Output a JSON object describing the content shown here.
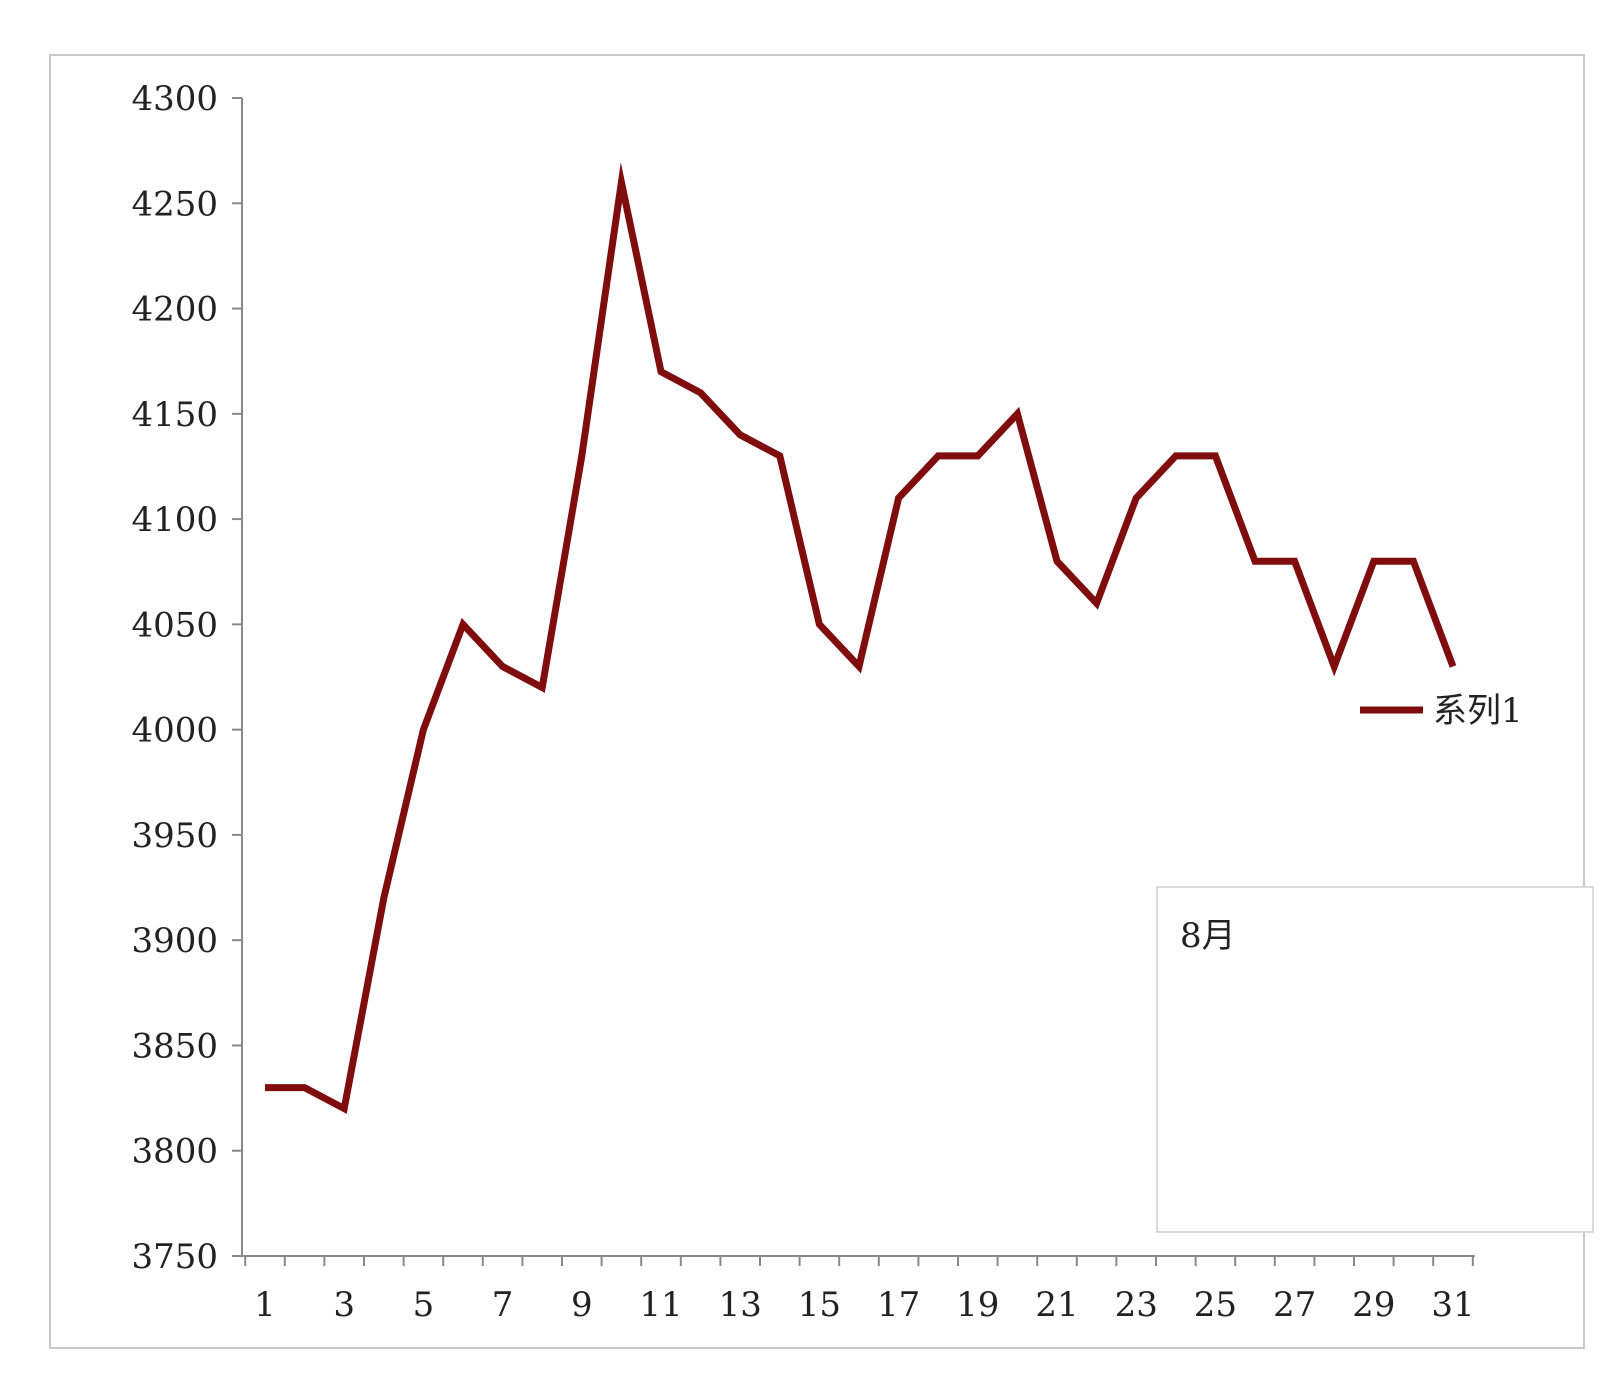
{
  "chart_data": {
    "type": "line",
    "categories": [
      1,
      2,
      3,
      4,
      5,
      6,
      7,
      8,
      9,
      10,
      11,
      12,
      13,
      14,
      15,
      16,
      17,
      18,
      19,
      20,
      21,
      22,
      23,
      24,
      25,
      26,
      27,
      28,
      29,
      30,
      31
    ],
    "x_tick_labels": [
      "1",
      "3",
      "5",
      "7",
      "9",
      "11",
      "13",
      "15",
      "17",
      "19",
      "21",
      "23",
      "25",
      "27",
      "29",
      "31"
    ],
    "ylim": [
      3750,
      4300
    ],
    "y_ticks": [
      3750,
      3800,
      3850,
      3900,
      3950,
      4000,
      4050,
      4100,
      4150,
      4200,
      4250,
      4300
    ],
    "series": [
      {
        "name": "系列1",
        "color": "#7f0d0d",
        "values": [
          3830,
          3830,
          3820,
          3920,
          4000,
          4050,
          4030,
          4020,
          4130,
          4260,
          4170,
          4160,
          4140,
          4130,
          4050,
          4030,
          4110,
          4130,
          4130,
          4150,
          4080,
          4060,
          4110,
          4130,
          4130,
          4080,
          4080,
          4030,
          4080,
          4080,
          4030
        ]
      }
    ],
    "legend": {
      "position": "right"
    },
    "annotation": "8月",
    "grid": false
  }
}
